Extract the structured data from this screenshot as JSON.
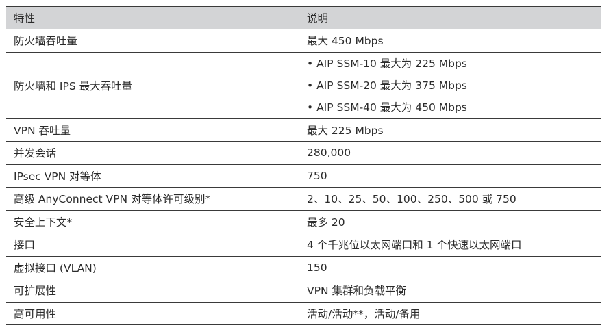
{
  "header": {
    "feature": "特性",
    "description": "说明"
  },
  "rows": [
    {
      "feature": "防火墙吞吐量",
      "description": "最大 450 Mbps"
    },
    {
      "feature": "防火墙和 IPS 最大吞吐量",
      "bullets": [
        "• AIP SSM-10 最大为 225 Mbps",
        "• AIP SSM-20 最大为 375 Mbps",
        "• AIP SSM-40 最大为 450 Mbps"
      ]
    },
    {
      "feature": "VPN 吞吐量",
      "description": "最大 225 Mbps"
    },
    {
      "feature": "并发会话",
      "description": "280,000"
    },
    {
      "feature": "IPsec VPN 对等体",
      "description": "750"
    },
    {
      "feature": "高级 AnyConnect VPN 对等体许可级别*",
      "description": "2、10、25、50、100、250、500 或 750"
    },
    {
      "feature": "安全上下文*",
      "description": "最多 20"
    },
    {
      "feature": "接口",
      "description": "4 个千兆位以太网端口和 1 个快速以太网端口"
    },
    {
      "feature": "虚拟接口 (VLAN)",
      "description": "150"
    },
    {
      "feature": "可扩展性",
      "description": "VPN 集群和负载平衡"
    },
    {
      "feature": "高可用性",
      "description": "活动/活动**，活动/备用"
    }
  ]
}
